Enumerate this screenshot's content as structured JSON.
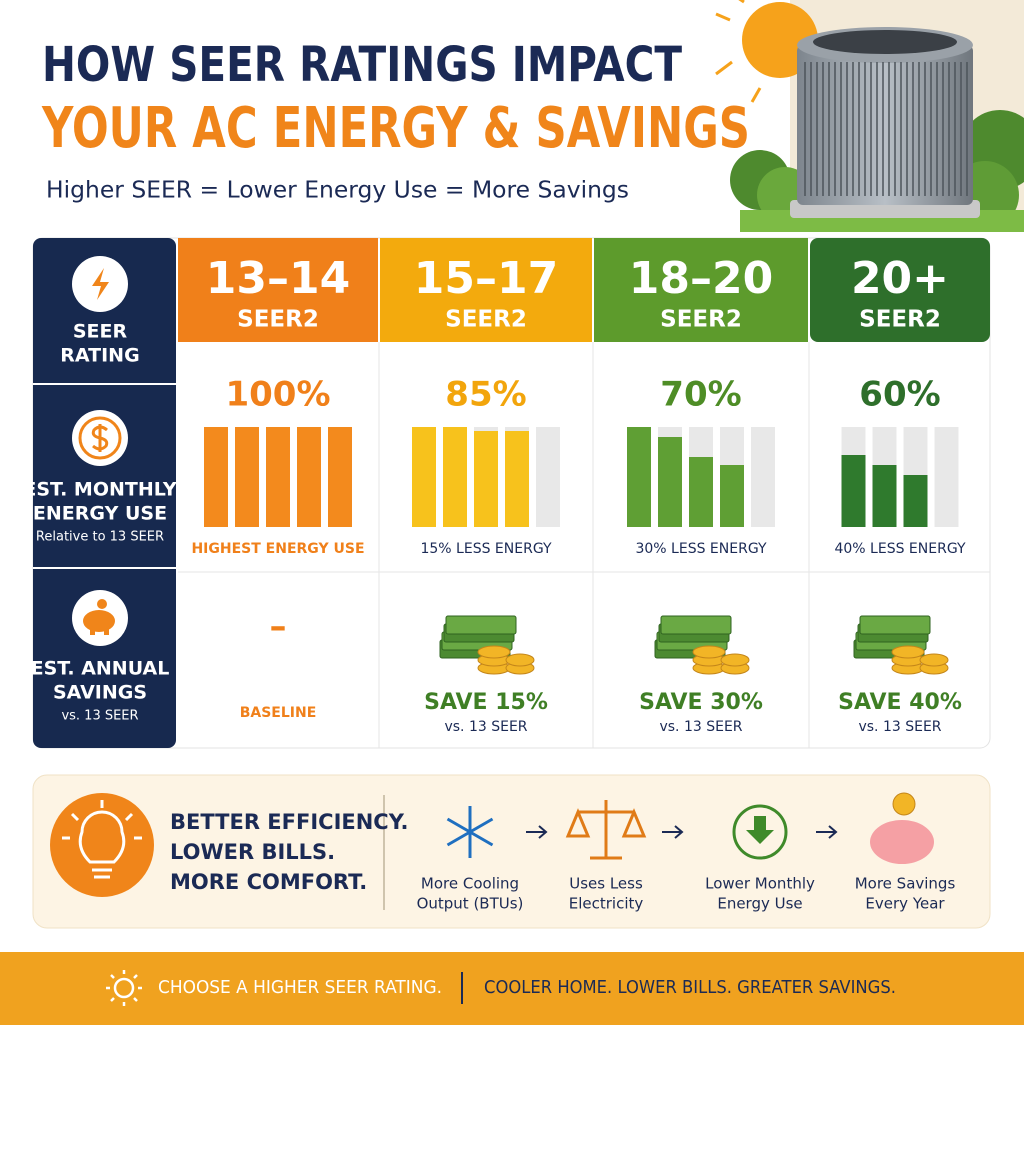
{
  "header": {
    "title_line1": "HOW SEER RATINGS IMPACT",
    "title_line2": "YOUR AC ENERGY & SAVINGS",
    "subtitle": "Higher SEER = Lower Energy Use = More Savings"
  },
  "table": {
    "row_headers": [
      {
        "lines": [
          "SEER",
          "RATING"
        ]
      },
      {
        "lines": [
          "EST. MONTHLY",
          "ENERGY USE"
        ],
        "note": "Relative to 13 SEER"
      },
      {
        "lines": [
          "EST. ANNUAL",
          "SAVINGS"
        ],
        "note": "vs. 13 SEER"
      }
    ],
    "columns": [
      {
        "range": "13–14",
        "unit": "SEER2",
        "energy": "100%",
        "energy_note": "HIGHEST ENERGY USE",
        "savings": "–",
        "savings_note": "BASELINE"
      },
      {
        "range": "15–17",
        "unit": "SEER2",
        "energy": "85%",
        "energy_note": "15% LESS ENERGY",
        "savings": "SAVE 15%",
        "savings_note": "vs. 13 SEER"
      },
      {
        "range": "18–20",
        "unit": "SEER2",
        "energy": "70%",
        "energy_note": "30% LESS ENERGY",
        "savings": "SAVE 30%",
        "savings_note": "vs. 13 SEER"
      },
      {
        "range": "20+",
        "unit": "SEER2",
        "energy": "60%",
        "energy_note": "40% LESS ENERGY",
        "savings": "SAVE 40%",
        "savings_note": "vs. 13 SEER"
      }
    ]
  },
  "benefits": [
    "BETTER EFFICIENCY.",
    "LOWER BILLS.",
    "MORE COMFORT."
  ],
  "steps": [
    {
      "lines": [
        "More Cooling",
        "Output (BTUs)"
      ]
    },
    {
      "lines": [
        "Uses Less",
        "Electricity"
      ]
    },
    {
      "lines": [
        "Lower Monthly",
        "Energy Use"
      ]
    },
    {
      "lines": [
        "More Savings",
        "Every Year"
      ]
    }
  ],
  "footer": {
    "left": "CHOOSE A HIGHER SEER RATING.",
    "right": "COOLER HOME. LOWER BILLS. GREATER SAVINGS."
  }
}
